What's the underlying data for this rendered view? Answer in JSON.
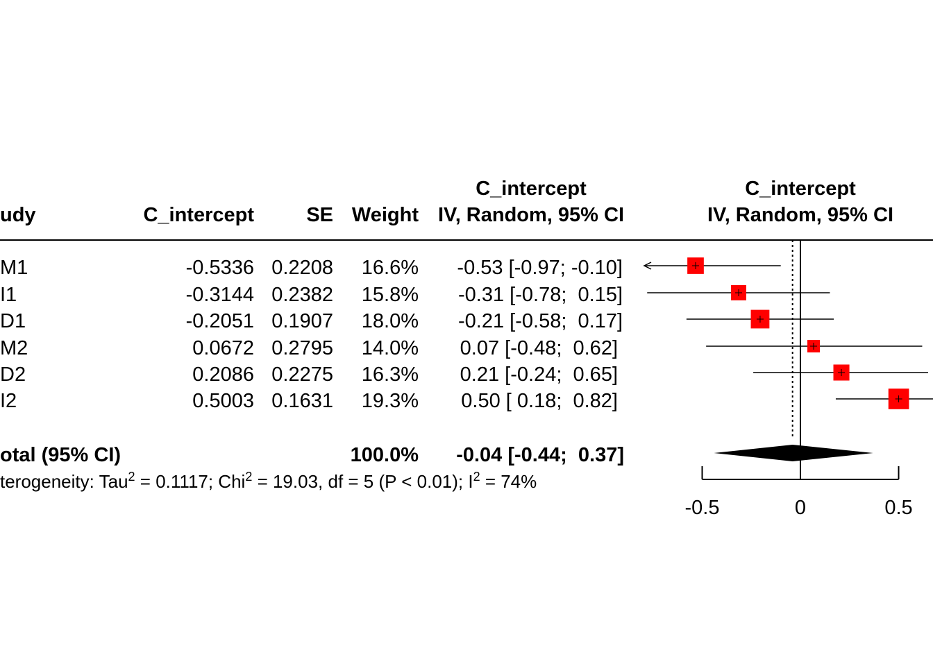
{
  "colors": {
    "box": "#ff0000",
    "diamond": "#000000",
    "line": "#000000",
    "background": "#ffffff"
  },
  "header": {
    "study": "udy",
    "c_intercept": "C_intercept",
    "se": "SE",
    "weight": "Weight",
    "ci_title": "C_intercept",
    "ci_sub": "IV, Random, 95% CI",
    "plot_title": "C_intercept",
    "plot_sub": "IV, Random, 95% CI"
  },
  "rows": [
    {
      "study": "M1",
      "te": "-0.5336",
      "se": "0.2208",
      "weight": "16.6%",
      "ci": "-0.53 [-0.97; -0.10]"
    },
    {
      "study": "I1",
      "te": "-0.3144",
      "se": "0.2382",
      "weight": "15.8%",
      "ci": "-0.31 [-0.78;  0.15]"
    },
    {
      "study": "D1",
      "te": "-0.2051",
      "se": "0.1907",
      "weight": "18.0%",
      "ci": "-0.21 [-0.58;  0.17]"
    },
    {
      "study": "M2",
      "te": "0.0672",
      "se": "0.2795",
      "weight": "14.0%",
      "ci": "0.07 [-0.48;  0.62]"
    },
    {
      "study": "D2",
      "te": "0.2086",
      "se": "0.2275",
      "weight": "16.3%",
      "ci": "0.21 [-0.24;  0.65]"
    },
    {
      "study": "I2",
      "te": "0.5003",
      "se": "0.1631",
      "weight": "19.3%",
      "ci": "0.50 [ 0.18;  0.82]"
    }
  ],
  "total": {
    "label": "otal (95% CI)",
    "weight": "100.0%",
    "ci": "-0.04 [-0.44;  0.37]"
  },
  "heterogeneity": {
    "prefix": "terogeneity: Tau",
    "tau_val": " = 0.1117; Chi",
    "chi_val": " = 19.03, df = 5 (P < 0.01); I",
    "i_val": " = 74%",
    "sup": "2"
  },
  "chart_data": {
    "type": "forest",
    "title": "C_intercept",
    "subtitle": "IV, Random, 95% CI",
    "xlim": [
      -0.5,
      0.5
    ],
    "xticks": [
      -0.5,
      0,
      0.5
    ],
    "xtick_labels": [
      "-0.5",
      "0",
      "0.5"
    ],
    "null_value": 0,
    "studies": [
      {
        "name": "M1",
        "est": -0.5336,
        "lower": -0.97,
        "upper": -0.1,
        "weight": 16.6
      },
      {
        "name": "I1",
        "est": -0.3144,
        "lower": -0.78,
        "upper": 0.15,
        "weight": 15.8
      },
      {
        "name": "D1",
        "est": -0.2051,
        "lower": -0.58,
        "upper": 0.17,
        "weight": 18.0
      },
      {
        "name": "M2",
        "est": 0.0672,
        "lower": -0.48,
        "upper": 0.62,
        "weight": 14.0
      },
      {
        "name": "D2",
        "est": 0.2086,
        "lower": -0.24,
        "upper": 0.65,
        "weight": 16.3
      },
      {
        "name": "I2",
        "est": 0.5003,
        "lower": 0.18,
        "upper": 0.82,
        "weight": 19.3
      }
    ],
    "pooled": {
      "est": -0.04,
      "lower": -0.44,
      "upper": 0.37
    }
  }
}
